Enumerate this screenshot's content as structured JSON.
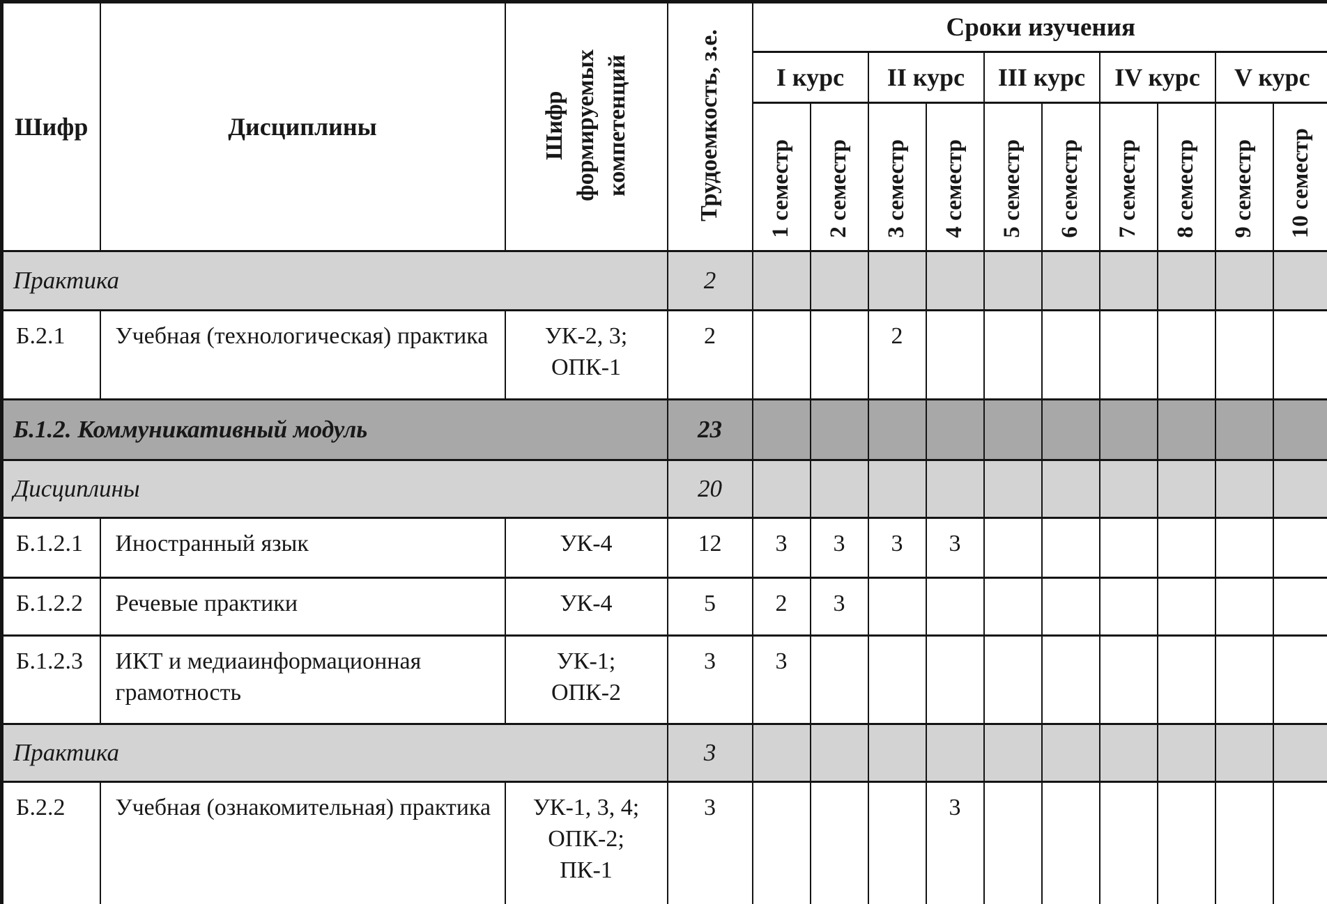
{
  "table": {
    "header": {
      "code": "Шифр",
      "disciplines": "Дисциплины",
      "competency": "Шифр\nформируемых\nкомпетенций",
      "workload": "Трудоемкость, з.е.",
      "study_period": "Сроки изучения",
      "courses": [
        "I курс",
        "II курс",
        "III курс",
        "IV курс",
        "V курс"
      ],
      "semesters": [
        "1 семестр",
        "2 семестр",
        "3 семестр",
        "4 семестр",
        "5 семестр",
        "6 семестр",
        "7 семестр",
        "8 семестр",
        "9 семестр",
        "10 семестр"
      ]
    },
    "rows": [
      {
        "type": "section",
        "label": "Практика",
        "workload": "2",
        "semesters": [
          "",
          "",
          "",
          "",
          "",
          "",
          "",
          "",
          "",
          ""
        ]
      },
      {
        "type": "item",
        "code": "Б.2.1",
        "discipline": "Учебная (технологическая) практика",
        "competencies": [
          "УК-2, 3;",
          "ОПК-1"
        ],
        "workload": "2",
        "semesters": [
          "",
          "",
          "2",
          "",
          "",
          "",
          "",
          "",
          "",
          ""
        ]
      },
      {
        "type": "module",
        "label": "Б.1.2. Коммуникативный модуль",
        "workload": "23",
        "semesters": [
          "",
          "",
          "",
          "",
          "",
          "",
          "",
          "",
          "",
          ""
        ]
      },
      {
        "type": "section",
        "label": "Дисциплины",
        "workload": "20",
        "semesters": [
          "",
          "",
          "",
          "",
          "",
          "",
          "",
          "",
          "",
          ""
        ]
      },
      {
        "type": "item",
        "code": "Б.1.2.1",
        "discipline": "Иностранный язык",
        "competencies": [
          "УК-4"
        ],
        "workload": "12",
        "semesters": [
          "3",
          "3",
          "3",
          "3",
          "",
          "",
          "",
          "",
          "",
          ""
        ]
      },
      {
        "type": "item",
        "code": "Б.1.2.2",
        "discipline": "Речевые практики",
        "competencies": [
          "УК-4"
        ],
        "workload": "5",
        "semesters": [
          "2",
          "3",
          "",
          "",
          "",
          "",
          "",
          "",
          "",
          ""
        ]
      },
      {
        "type": "item",
        "code": "Б.1.2.3",
        "discipline": "ИКТ и медиаинформационная грамотность",
        "competencies": [
          "УК-1;",
          "ОПК-2"
        ],
        "workload": "3",
        "semesters": [
          "3",
          "",
          "",
          "",
          "",
          "",
          "",
          "",
          "",
          ""
        ]
      },
      {
        "type": "section",
        "label": "Практика",
        "workload": "3",
        "semesters": [
          "",
          "",
          "",
          "",
          "",
          "",
          "",
          "",
          "",
          ""
        ]
      },
      {
        "type": "item",
        "code": "Б.2.2",
        "discipline": "Учебная (ознакомительная) практика",
        "competencies": [
          "УК-1, 3, 4;",
          "ОПК-2;",
          "ПК-1"
        ],
        "workload": "3",
        "semesters": [
          "",
          "",
          "",
          "3",
          "",
          "",
          "",
          "",
          "",
          ""
        ]
      }
    ],
    "colors": {
      "section_bg": "#d3d3d3",
      "module_bg": "#a8a8a8",
      "border": "#141414",
      "text": "#181818"
    }
  }
}
